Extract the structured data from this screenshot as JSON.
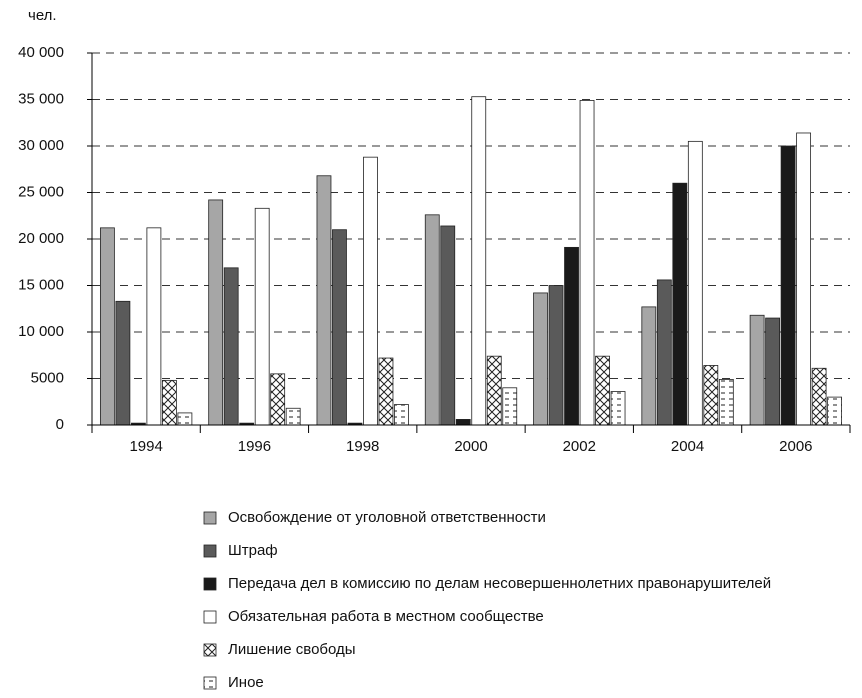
{
  "chart_data": {
    "type": "bar",
    "y_label": "чел.",
    "categories": [
      "1994",
      "1996",
      "1998",
      "2000",
      "2002",
      "2004",
      "2006"
    ],
    "series": [
      {
        "name": "Освобождение от уголовной ответственности",
        "color": "#a6a6a6",
        "pattern": "solid",
        "values": [
          21200,
          24200,
          26800,
          22600,
          14200,
          12700,
          11800
        ]
      },
      {
        "name": "Штраф",
        "color": "#5a5a5a",
        "pattern": "solid",
        "values": [
          13300,
          16900,
          21000,
          21400,
          15000,
          15600,
          11500
        ]
      },
      {
        "name": "Передача дел  в комиссию по делам несовершеннолетних правонарушителей",
        "color": "#1a1a1a",
        "pattern": "solid",
        "values": [
          200,
          200,
          200,
          600,
          19100,
          26000,
          30000
        ]
      },
      {
        "name": "Обязательная  работа  в местном сообществе",
        "color": "#ffffff",
        "pattern": "solid",
        "values": [
          21200,
          23300,
          28800,
          35300,
          34900,
          30500,
          31400
        ]
      },
      {
        "name": "Лишение свободы",
        "color": "#ffffff",
        "pattern": "crosshatch",
        "values": [
          4800,
          5500,
          7200,
          7400,
          7400,
          6400,
          6100
        ]
      },
      {
        "name": "Иное",
        "color": "#ffffff",
        "pattern": "dash",
        "values": [
          1300,
          1800,
          2200,
          4000,
          3600,
          4900,
          3000
        ]
      }
    ],
    "ylim": [
      0,
      40000
    ],
    "yticks": [
      0,
      5000,
      {
        "value": 10000,
        "label": "10 000"
      },
      {
        "value": 15000,
        "label": "15 000"
      },
      {
        "value": 20000,
        "label": "20 000"
      },
      {
        "value": 25000,
        "label": "25 000"
      },
      {
        "value": 30000,
        "label": "30 000"
      },
      {
        "value": 35000,
        "label": "35 000"
      },
      {
        "value": 40000,
        "label": "40 000"
      }
    ],
    "grid": true
  }
}
